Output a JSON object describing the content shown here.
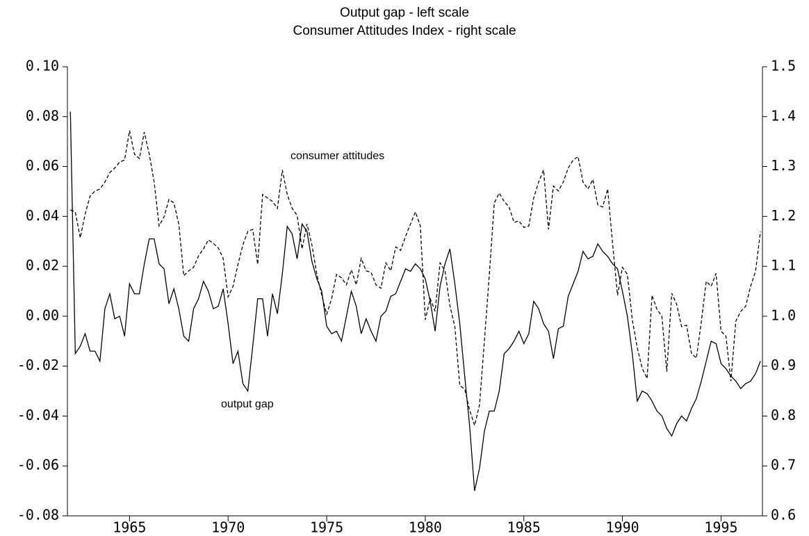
{
  "chart_data": {
    "type": "line",
    "title": "Output gap - left scale",
    "subtitle": "Consumer Attitudes Index - right scale",
    "annotations": [
      {
        "text": "consumer attitudes"
      },
      {
        "text": "output gap"
      }
    ],
    "x": [
      1962,
      1962.25,
      1962.5,
      1962.75,
      1963,
      1963.25,
      1963.5,
      1963.75,
      1964,
      1964.25,
      1964.5,
      1964.75,
      1965,
      1965.25,
      1965.5,
      1965.75,
      1966,
      1966.25,
      1966.5,
      1966.75,
      1967,
      1967.25,
      1967.5,
      1967.75,
      1968,
      1968.25,
      1968.5,
      1968.75,
      1969,
      1969.25,
      1969.5,
      1969.75,
      1970,
      1970.25,
      1970.5,
      1970.75,
      1971,
      1971.25,
      1971.5,
      1971.75,
      1972,
      1972.25,
      1972.5,
      1972.75,
      1973,
      1973.25,
      1973.5,
      1973.75,
      1974,
      1974.25,
      1974.5,
      1974.75,
      1975,
      1975.25,
      1975.5,
      1975.75,
      1976,
      1976.25,
      1976.5,
      1976.75,
      1977,
      1977.25,
      1977.5,
      1977.75,
      1978,
      1978.25,
      1978.5,
      1978.75,
      1979,
      1979.25,
      1979.5,
      1979.75,
      1980,
      1980.25,
      1980.5,
      1980.75,
      1981,
      1981.25,
      1981.5,
      1981.75,
      1982,
      1982.25,
      1982.5,
      1982.75,
      1983,
      1983.25,
      1983.5,
      1983.75,
      1984,
      1984.25,
      1984.5,
      1984.75,
      1985,
      1985.25,
      1985.5,
      1985.75,
      1986,
      1986.25,
      1986.5,
      1986.75,
      1987,
      1987.25,
      1987.5,
      1987.75,
      1988,
      1988.25,
      1988.5,
      1988.75,
      1989,
      1989.25,
      1989.5,
      1989.75,
      1990,
      1990.25,
      1990.5,
      1990.75,
      1991,
      1991.25,
      1991.5,
      1991.75,
      1992,
      1992.25,
      1992.5,
      1992.75,
      1993,
      1993.25,
      1993.5,
      1993.75,
      1994,
      1994.25,
      1994.5,
      1994.75,
      1995,
      1995.25,
      1995.5,
      1995.75,
      1996,
      1996.25,
      1996.5,
      1996.75,
      1997
    ],
    "series": [
      {
        "name": "output gap",
        "color": "#000000",
        "dash": "solid",
        "axis": "y",
        "values": [
          0.082,
          -0.015,
          -0.012,
          -0.007,
          -0.014,
          -0.014,
          -0.018,
          0.003,
          0.009,
          -0.001,
          0.0,
          -0.008,
          0.013,
          0.009,
          0.009,
          0.021,
          0.031,
          0.031,
          0.021,
          0.019,
          0.005,
          0.011,
          0.003,
          -0.008,
          -0.01,
          0.003,
          0.007,
          0.014,
          0.01,
          0.003,
          0.004,
          0.011,
          -0.003,
          -0.019,
          -0.014,
          -0.027,
          -0.03,
          -0.012,
          0.007,
          0.007,
          -0.008,
          0.009,
          0.001,
          0.017,
          0.036,
          0.033,
          0.023,
          0.037,
          0.034,
          0.022,
          0.015,
          0.01,
          -0.004,
          -0.007,
          -0.006,
          -0.01,
          0.0,
          0.01,
          0.004,
          -0.007,
          -0.001,
          -0.006,
          -0.01,
          0.0,
          0.002,
          0.008,
          0.009,
          0.014,
          0.019,
          0.018,
          0.021,
          0.019,
          0.015,
          0.006,
          -0.006,
          0.012,
          0.021,
          0.027,
          0.013,
          -0.003,
          -0.024,
          -0.044,
          -0.07,
          -0.061,
          -0.046,
          -0.038,
          -0.038,
          -0.03,
          -0.015,
          -0.013,
          -0.01,
          -0.006,
          -0.011,
          -0.007,
          0.006,
          0.003,
          -0.003,
          -0.006,
          -0.017,
          -0.005,
          -0.004,
          0.008,
          0.013,
          0.018,
          0.026,
          0.023,
          0.024,
          0.029,
          0.026,
          0.024,
          0.021,
          0.019,
          0.01,
          0.0,
          -0.015,
          -0.034,
          -0.03,
          -0.031,
          -0.034,
          -0.038,
          -0.04,
          -0.045,
          -0.048,
          -0.043,
          -0.04,
          -0.042,
          -0.037,
          -0.033,
          -0.026,
          -0.018,
          -0.01,
          -0.011,
          -0.019,
          -0.021,
          -0.024,
          -0.026,
          -0.029,
          -0.027,
          -0.026,
          -0.023,
          -0.018
        ]
      },
      {
        "name": "consumer attitudes",
        "color": "#000000",
        "dash": "dashed",
        "axis": "y2",
        "values": [
          1.213,
          1.209,
          1.157,
          1.205,
          1.241,
          1.251,
          1.255,
          1.269,
          1.288,
          1.297,
          1.309,
          1.313,
          1.372,
          1.325,
          1.316,
          1.369,
          1.325,
          1.269,
          1.181,
          1.199,
          1.234,
          1.227,
          1.185,
          1.081,
          1.091,
          1.098,
          1.121,
          1.135,
          1.153,
          1.146,
          1.137,
          1.116,
          1.039,
          1.06,
          1.104,
          1.143,
          1.17,
          1.174,
          1.104,
          1.244,
          1.237,
          1.23,
          1.216,
          1.293,
          1.244,
          1.216,
          1.202,
          1.135,
          1.185,
          1.143,
          1.084,
          1.042,
          1.004,
          1.035,
          1.084,
          1.077,
          1.063,
          1.093,
          1.063,
          1.116,
          1.091,
          1.088,
          1.063,
          1.056,
          1.107,
          1.091,
          1.139,
          1.132,
          1.16,
          1.185,
          1.209,
          1.181,
          0.993,
          1.035,
          1.01,
          1.107,
          1.091,
          1.021,
          0.979,
          0.861,
          0.854,
          0.812,
          0.781,
          0.822,
          0.951,
          1.084,
          1.227,
          1.247,
          1.23,
          1.219,
          1.188,
          1.191,
          1.178,
          1.181,
          1.237,
          1.269,
          1.293,
          1.174,
          1.261,
          1.251,
          1.269,
          1.297,
          1.313,
          1.32,
          1.269,
          1.255,
          1.274,
          1.223,
          1.219,
          1.255,
          1.146,
          1.042,
          1.098,
          1.084,
          0.993,
          0.937,
          0.896,
          0.875,
          1.042,
          1.014,
          1.0,
          0.889,
          1.046,
          1.024,
          0.979,
          0.982,
          0.926,
          0.916,
          0.989,
          1.07,
          1.06,
          1.086,
          0.97,
          0.96,
          0.87,
          0.99,
          1.01,
          1.02,
          1.06,
          1.09,
          1.17
        ]
      }
    ],
    "xlim": [
      1961.85,
      1997.1
    ],
    "xticks": [
      1965,
      1970,
      1975,
      1980,
      1985,
      1990,
      1995
    ],
    "ylim": [
      -0.08,
      0.1
    ],
    "yticks": [
      {
        "value": -0.08,
        "label": "-0.08"
      },
      {
        "value": -0.06,
        "label": "-0.06"
      },
      {
        "value": -0.04,
        "label": "-0.04"
      },
      {
        "value": -0.02,
        "label": "-0.02"
      },
      {
        "value": 0,
        "label": "0.00"
      },
      {
        "value": 0.02,
        "label": "0.02"
      },
      {
        "value": 0.04,
        "label": "0.04"
      },
      {
        "value": 0.06,
        "label": "0.06"
      },
      {
        "value": 0.08,
        "label": "0.08"
      },
      {
        "value": 0.1,
        "label": "0.10"
      }
    ],
    "y2lim": [
      0.6,
      1.5
    ],
    "y2ticks": [
      0.6,
      0.7,
      0.8,
      0.9,
      {
        "value": 1,
        "label": "1.0"
      },
      1.1,
      1.2,
      1.3,
      1.4,
      1.5
    ],
    "grid": false
  }
}
